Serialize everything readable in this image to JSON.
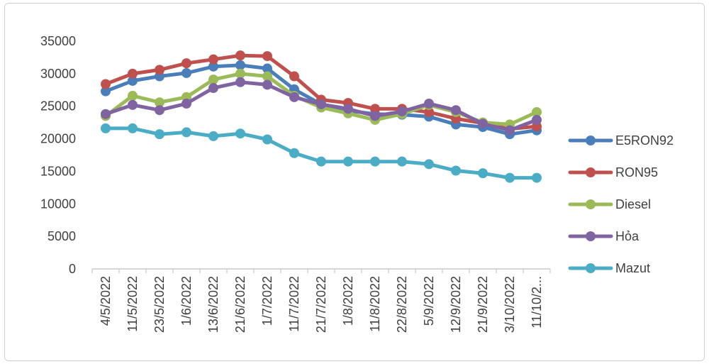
{
  "chart_data": {
    "type": "line",
    "title": "",
    "xlabel": "",
    "ylabel": "",
    "ylim": [
      0,
      35000
    ],
    "yticks": [
      0,
      5000,
      10000,
      15000,
      20000,
      25000,
      30000,
      35000
    ],
    "grid": false,
    "legend_position": "right",
    "categories": [
      "4/5/2022",
      "11/5/2022",
      "23/5/2022",
      "1/6/2022",
      "13/6/2022",
      "21/6/2022",
      "1/7/2022",
      "11/7/2022",
      "21/7/2022",
      "1/8/2022",
      "11/8/2022",
      "22/8/2022",
      "5/9/2022",
      "12/9/2022",
      "21/9/2022",
      "3/10/2022",
      "11/10/2..."
    ],
    "series": [
      {
        "name": "E5RON92",
        "color": "#4a7ebb",
        "values": [
          27300,
          28900,
          29600,
          30100,
          31100,
          31300,
          30800,
          27600,
          25300,
          24300,
          23800,
          23700,
          23400,
          22200,
          21800,
          20700,
          21300
        ]
      },
      {
        "name": "RON95",
        "color": "#c0504d",
        "values": [
          28400,
          30000,
          30600,
          31600,
          32200,
          32800,
          32700,
          29600,
          26000,
          25500,
          24600,
          24600,
          24100,
          23100,
          22400,
          21500,
          21900
        ]
      },
      {
        "name": "Diesel",
        "color": "#9bbb59",
        "values": [
          23500,
          26600,
          25600,
          26400,
          29100,
          30000,
          29600,
          26600,
          24800,
          23900,
          22900,
          23800,
          25200,
          24100,
          22500,
          22200,
          24100
        ]
      },
      {
        "name": "Hỏa",
        "color": "#8064a2",
        "values": [
          23800,
          25200,
          24400,
          25400,
          27800,
          28700,
          28300,
          26400,
          25300,
          24600,
          23500,
          24200,
          25400,
          24400,
          22300,
          21300,
          22900
        ]
      },
      {
        "name": "Mazut",
        "color": "#4bacc6",
        "values": [
          21600,
          21600,
          20700,
          21000,
          20400,
          20800,
          19900,
          17800,
          16500,
          16500,
          16500,
          16500,
          16100,
          15100,
          14700,
          14000,
          14000
        ]
      }
    ]
  }
}
